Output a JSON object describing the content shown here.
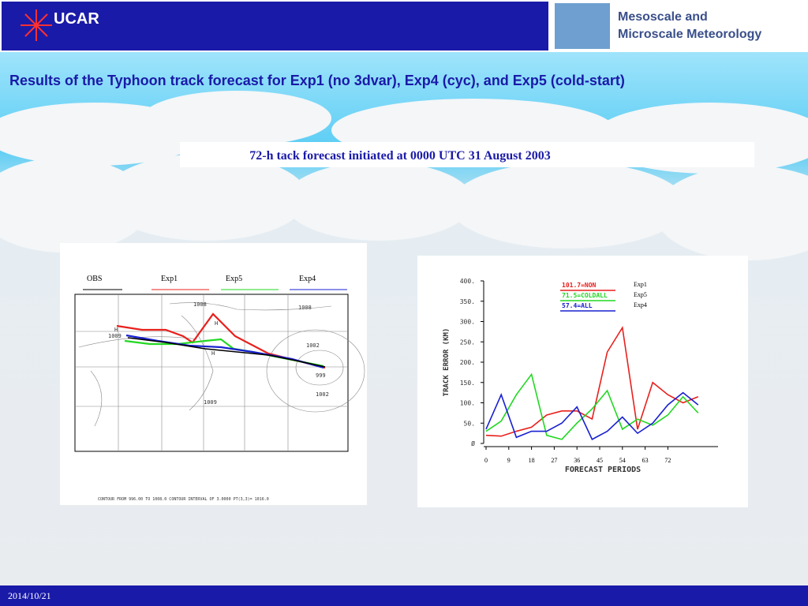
{
  "header": {
    "logo": "UCAR",
    "program_line1": "Mesoscale and",
    "program_line2": "Microscale Meteorology"
  },
  "title": "Results of the Typhoon track forecast for Exp1 (no 3dvar), Exp4 (cyc), and Exp5 (cold-start)",
  "subtitle": "72-h tack forecast initiated at 0000 UTC 31 August 2003",
  "track_map": {
    "legend": [
      "OBS",
      "Exp1",
      "Exp5",
      "Exp4"
    ],
    "contour_labels": [
      "1008",
      "1008",
      "1002",
      "999",
      "1002",
      "1009",
      "1009",
      "H",
      "H",
      "H"
    ],
    "footer": "CONTOUR FROM 996.00 TO 1008.0 CONTOUR INTERVAL OF 3.0000 PT(3,3)= 1016.0"
  },
  "track_chart": {
    "type": "line",
    "ylabel": "TRACK ERROR (KM)",
    "xlabel": "FORECAST PERIODS",
    "x": [
      0,
      6,
      12,
      18,
      24,
      30,
      36,
      42,
      48,
      54,
      60,
      66,
      72,
      78,
      84
    ],
    "xlim": [
      0,
      90
    ],
    "xticks": [
      0,
      9,
      18,
      27,
      36,
      45,
      54,
      63,
      72
    ],
    "ylim": [
      0,
      400
    ],
    "yticks": [
      {
        "value": 0,
        "label": "Ø"
      },
      {
        "value": 50,
        "label": "50."
      },
      {
        "value": 100,
        "label": "100."
      },
      {
        "value": 150,
        "label": "150."
      },
      {
        "value": 200,
        "label": "200."
      },
      {
        "value": 250,
        "label": "250."
      },
      {
        "value": 300,
        "label": "300."
      },
      {
        "value": 350,
        "label": "350."
      },
      {
        "value": 400,
        "label": "400."
      }
    ],
    "legend_stats": [
      "101.7=NON",
      "71.5=COLDALL",
      "57.4=ALL"
    ],
    "series": [
      {
        "name": "Exp1",
        "color": "#e8201c",
        "values": [
          20,
          18,
          30,
          40,
          70,
          80,
          80,
          60,
          225,
          285,
          35,
          150,
          120,
          100,
          115
        ]
      },
      {
        "name": "Exp5",
        "color": "#22d822",
        "values": [
          30,
          55,
          120,
          170,
          20,
          10,
          50,
          85,
          130,
          35,
          60,
          45,
          70,
          115,
          75
        ]
      },
      {
        "name": "Exp4",
        "color": "#1820d0",
        "values": [
          35,
          120,
          15,
          30,
          30,
          50,
          90,
          10,
          30,
          65,
          25,
          50,
          95,
          125,
          95
        ]
      }
    ]
  },
  "footer": {
    "date": "2014/10/21"
  }
}
